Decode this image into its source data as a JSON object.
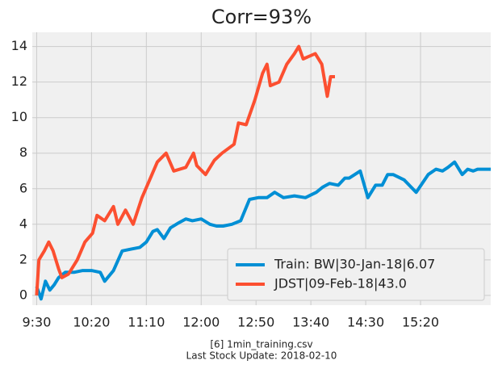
{
  "chart_data": {
    "type": "line",
    "title": "Corr=93%",
    "notes": [
      "[6] 1min_training.csv",
      "Last Stock Update: 2018-02-10"
    ],
    "series": [
      {
        "name": "Train: BW|30-Jan-18|6.07",
        "color": "#008fd5",
        "x": [
          570,
          574,
          578,
          582,
          586,
          590,
          596,
          604,
          612,
          620,
          628,
          632,
          640,
          648,
          656,
          664,
          670,
          676,
          680,
          686,
          692,
          700,
          706,
          712,
          720,
          728,
          734,
          740,
          748,
          756,
          764,
          772,
          780,
          787,
          795,
          805,
          815,
          825,
          831,
          837,
          845,
          851,
          855,
          860,
          865,
          872,
          879,
          885,
          890,
          895,
          905,
          916,
          927,
          934,
          940,
          945,
          951,
          958,
          963,
          968,
          972,
          978,
          984
        ],
        "values": [
          0.5,
          -0.2,
          0.8,
          0.3,
          0.6,
          1.0,
          1.3,
          1.3,
          1.4,
          1.4,
          1.3,
          0.8,
          1.4,
          2.5,
          2.6,
          2.7,
          3.0,
          3.6,
          3.7,
          3.2,
          3.8,
          4.1,
          4.3,
          4.2,
          4.3,
          4.0,
          3.9,
          3.9,
          4.0,
          4.2,
          5.4,
          5.5,
          5.5,
          5.8,
          5.5,
          5.6,
          5.5,
          5.8,
          6.1,
          6.3,
          6.2,
          6.6,
          6.6,
          6.8,
          7.0,
          5.5,
          6.2,
          6.2,
          6.8,
          6.8,
          6.5,
          5.8,
          6.8,
          7.1,
          7.0,
          7.2,
          7.5,
          6.8,
          7.1,
          7.0,
          7.1,
          7.1,
          7.1
        ]
      },
      {
        "name": "JDST|09-Feb-18|43.0",
        "color": "#fc4f30",
        "x": [
          570,
          572,
          577,
          581,
          585,
          590,
          593,
          599,
          607,
          614,
          621,
          625,
          632,
          640,
          644,
          651,
          658,
          666,
          673,
          680,
          688,
          695,
          706,
          713,
          716,
          724,
          732,
          739,
          750,
          754,
          761,
          769,
          776,
          780,
          783,
          791,
          798,
          805,
          809,
          813,
          824,
          830,
          835,
          838,
          842
        ],
        "values": [
          0.0,
          2.0,
          2.5,
          3.0,
          2.5,
          1.5,
          1.0,
          1.2,
          2.0,
          3.0,
          3.5,
          4.5,
          4.2,
          5.0,
          4.0,
          4.8,
          4.0,
          5.5,
          6.5,
          7.5,
          8.0,
          7.0,
          7.2,
          8.0,
          7.3,
          6.8,
          7.6,
          8.0,
          8.5,
          9.7,
          9.6,
          11.0,
          12.5,
          13.0,
          11.8,
          12.0,
          13.0,
          13.6,
          14.0,
          13.3,
          13.6,
          13.0,
          11.2,
          12.3,
          12.3
        ]
      }
    ],
    "xlim": [
      566,
      984
    ],
    "ylim": [
      -0.55,
      14.8
    ],
    "xticks": [
      {
        "value": 570,
        "label": "9:30"
      },
      {
        "value": 620,
        "label": "10:20"
      },
      {
        "value": 670,
        "label": "11:10"
      },
      {
        "value": 720,
        "label": "12:00"
      },
      {
        "value": 770,
        "label": "12:50"
      },
      {
        "value": 820,
        "label": "13:40"
      },
      {
        "value": 870,
        "label": "14:30"
      },
      {
        "value": 920,
        "label": "15:20"
      }
    ],
    "yticks": [
      0,
      2,
      4,
      6,
      8,
      10,
      12,
      14
    ],
    "grid": true,
    "legend": "lower right"
  }
}
